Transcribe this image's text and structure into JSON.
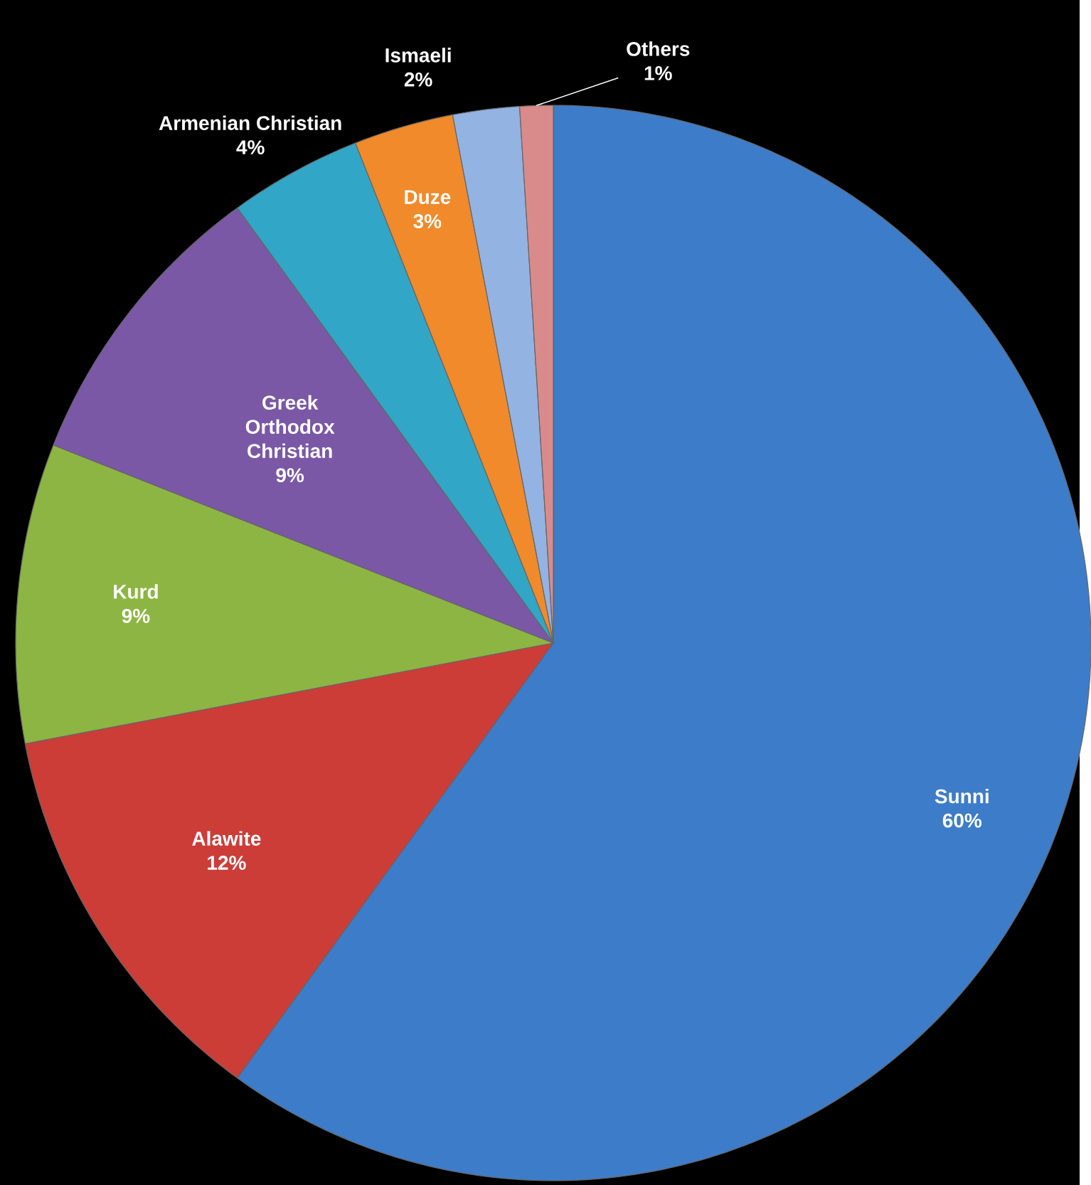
{
  "chart_data": {
    "type": "pie",
    "categories": [
      "Sunni",
      "Alawite",
      "Kurd",
      "Greek Orthodox Christian",
      "Armenian Christian",
      "Duze",
      "Ismaeli",
      "Others"
    ],
    "values": [
      60,
      12,
      9,
      9,
      4,
      3,
      2,
      1
    ],
    "colors": [
      "#3d7cc9",
      "#cc3d38",
      "#8db543",
      "#7a58a6",
      "#32a6c6",
      "#f08a2a",
      "#93b3e2",
      "#d98b8b"
    ],
    "value_labels": [
      "60%",
      "12%",
      "9%",
      "9%",
      "4%",
      "3%",
      "2%",
      "1%"
    ]
  }
}
